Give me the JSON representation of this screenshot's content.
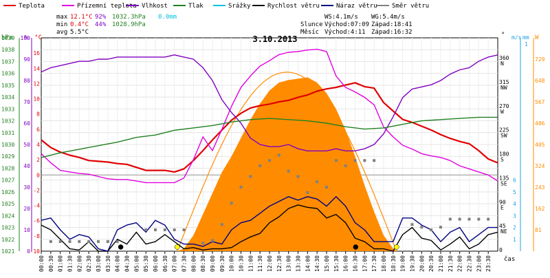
{
  "colors": {
    "teplota": "#e00000",
    "pocitova": "#e000e0",
    "vlhkost": "#8000c0",
    "tlak": "#208020",
    "srazky": "#00c0e0",
    "rychlost": "#000000",
    "naraz": "#000080",
    "smer": "#808080",
    "slunce": "#ff8c00",
    "axis_ms": "#20a0e0",
    "axis_w": "#ff8c00"
  },
  "legend": [
    {
      "label": "Teplota",
      "color_key": "teplota"
    },
    {
      "label": "Přízemní teplota",
      "color_key": "pocitova"
    },
    {
      "label": "Vlhkost",
      "color_key": "vlhkost"
    },
    {
      "label": "Tlak",
      "color_key": "tlak"
    },
    {
      "label": "Srážky",
      "color_key": "srazky"
    },
    {
      "label": "Rychlost větru",
      "color_key": "rychlost"
    },
    {
      "label": "Náraz větru",
      "color_key": "naraz"
    },
    {
      "label": "Směr větru",
      "color_key": "smer"
    }
  ],
  "stats": {
    "max": {
      "label": "max",
      "temp": "12.1°C",
      "hum": "92%",
      "press": "1032.3hPa",
      "rain": "0.0mm"
    },
    "min": {
      "label": "min",
      "temp": "0.4°C",
      "hum": "44%",
      "press": "1028.9hPa"
    },
    "avg": {
      "label": "avg",
      "temp": "5.5°C"
    }
  },
  "wind_info": {
    "ws": "WS:4.1m/s",
    "wg": "WG:5.4m/s"
  },
  "sun": {
    "label": "Slunce",
    "rise": "Východ:07:09",
    "set": "Západ:18:41"
  },
  "moon": {
    "label": "Měsíc",
    "rise": "Východ:4:11",
    "set": "Západ:16:32"
  },
  "chart_data": {
    "type": "line",
    "title": "3.10.2013",
    "xlabel": "čas",
    "x_ticks": [
      "00:00",
      "00:30",
      "01:00",
      "01:30",
      "02:00",
      "02:30",
      "03:00",
      "03:30",
      "04:00",
      "04:30",
      "05:00",
      "05:30",
      "06:00",
      "06:30",
      "07:00",
      "07:30",
      "08:00",
      "08:30",
      "09:00",
      "09:30",
      "10:00",
      "10:30",
      "11:00",
      "11:30",
      "12:00",
      "12:30",
      "13:00",
      "13:30",
      "14:00",
      "14:30",
      "15:00",
      "15:30",
      "16:00",
      "16:30",
      "17:00",
      "17:30",
      "18:00",
      "18:30",
      "19:00",
      "19:30",
      "20:00",
      "20:30",
      "21:00",
      "21:30",
      "22:00",
      "22:30",
      "23:00",
      "23:30"
    ],
    "axes": {
      "hpa": {
        "unit": "hPa",
        "range": [
          1021,
          1039
        ],
        "ticks": [
          "1039",
          "1038",
          "1037",
          "1036",
          "1035",
          "1034",
          "1033",
          "1032",
          "1031",
          "1030",
          "1029",
          "1028",
          "1027",
          "1026",
          "1025",
          "1024",
          "1023",
          "1022",
          "1021"
        ]
      },
      "percent": {
        "unit": "%",
        "range": [
          0,
          100
        ],
        "ticks": [
          "100",
          "90",
          "80",
          "70",
          "60",
          "50",
          "40",
          "30",
          "20",
          "10",
          "0"
        ]
      },
      "celsius": {
        "unit": "°C",
        "range": [
          -10,
          18
        ],
        "ticks": [
          "16",
          "14",
          "12",
          "10",
          "8",
          "6",
          "4",
          "2",
          "0",
          "-2",
          "-4",
          "-6",
          "-8",
          "-10"
        ]
      },
      "direction": {
        "unit": "°",
        "range": [
          0,
          360
        ],
        "ticks": [
          {
            "deg": "360",
            "dir": "N"
          },
          {
            "deg": "315",
            "dir": "NW"
          },
          {
            "deg": "270",
            "dir": "W"
          },
          {
            "deg": "225",
            "dir": "SW"
          },
          {
            "deg": "180",
            "dir": "S"
          },
          {
            "deg": "135",
            "dir": "SE"
          },
          {
            "deg": "90",
            "dir": "E"
          },
          {
            "deg": "45",
            "dir": "NE"
          },
          {
            "deg": "0",
            "dir": ""
          }
        ]
      },
      "ms": {
        "unit": "m/s",
        "range": [
          0,
          6
        ],
        "ticks": [
          "6",
          "5",
          "4",
          "3",
          "2",
          "1"
        ]
      },
      "mm": {
        "unit": "mm",
        "ticks": [
          "1"
        ]
      },
      "wm2": {
        "unit": "W",
        "range": [
          0,
          810
        ],
        "ticks": [
          "729",
          "648",
          "567",
          "486",
          "405",
          "324",
          "243",
          "162",
          "81"
        ]
      }
    },
    "series": [
      {
        "name": "Teplota",
        "unit": "°C",
        "color_key": "teplota",
        "x": [
          0,
          0.5,
          1,
          1.5,
          2,
          2.5,
          3,
          3.5,
          4,
          4.5,
          5,
          5.5,
          6,
          6.5,
          7,
          7.5,
          8,
          8.5,
          9,
          9.5,
          10,
          10.5,
          11,
          11.5,
          12,
          12.5,
          13,
          13.5,
          14,
          14.5,
          15,
          15.5,
          16,
          16.5,
          17,
          17.5,
          18,
          18.5,
          19,
          19.5,
          20,
          20.5,
          21,
          21.5,
          22,
          22.5,
          23,
          23.5,
          24
        ],
        "y": [
          4.6,
          3.6,
          3.0,
          2.6,
          2.3,
          1.9,
          1.8,
          1.7,
          1.5,
          1.4,
          1.0,
          0.6,
          0.6,
          0.6,
          0.4,
          0.8,
          1.9,
          3.2,
          4.6,
          5.9,
          7.2,
          8.1,
          8.8,
          9.1,
          9.3,
          9.6,
          9.8,
          10.2,
          10.5,
          11.0,
          11.3,
          11.5,
          11.8,
          12.1,
          11.6,
          11.4,
          9.5,
          8.4,
          7.3,
          6.9,
          6.4,
          5.9,
          5.3,
          4.8,
          4.4,
          4.1,
          3.2,
          2.1,
          1.6
        ]
      },
      {
        "name": "Přízemní teplota",
        "unit": "°C",
        "color_key": "pocitova",
        "x": [
          0,
          0.5,
          1,
          1.5,
          2,
          2.5,
          3,
          3.5,
          4,
          4.5,
          5,
          5.5,
          6,
          6.5,
          7,
          7.5,
          8,
          8.5,
          9,
          9.5,
          10,
          10.5,
          11,
          11.5,
          12,
          12.5,
          13,
          13.5,
          14,
          14.5,
          15,
          15.5,
          16,
          16.5,
          17,
          17.5,
          18,
          18.5,
          19,
          19.5,
          20,
          20.5,
          21,
          21.5,
          22,
          22.5,
          23,
          23.5,
          24
        ],
        "y": [
          2.8,
          1.6,
          0.6,
          0.4,
          0.2,
          0.1,
          -0.2,
          -0.5,
          -0.6,
          -0.6,
          -0.8,
          -1.0,
          -1.0,
          -1.0,
          -1.0,
          -0.4,
          2.0,
          5.0,
          3.2,
          6.0,
          9.0,
          11.5,
          13.0,
          14.3,
          15.0,
          15.8,
          16.1,
          16.2,
          16.4,
          16.5,
          16.2,
          13.0,
          11.5,
          10.9,
          10.2,
          9.2,
          6.3,
          5.0,
          3.9,
          3.4,
          2.8,
          2.5,
          2.3,
          1.9,
          1.2,
          0.8,
          0.4,
          0.0,
          -0.8
        ]
      },
      {
        "name": "Vlhkost",
        "unit": "%",
        "color_key": "vlhkost",
        "x": [
          0,
          0.5,
          1,
          1.5,
          2,
          2.5,
          3,
          3.5,
          4,
          4.5,
          5,
          5.5,
          6,
          6.5,
          7,
          7.5,
          8,
          8.5,
          9,
          9.5,
          10,
          10.5,
          11,
          11.5,
          12,
          12.5,
          13,
          13.5,
          14,
          14.5,
          15,
          15.5,
          16,
          16.5,
          17,
          17.5,
          18,
          18.5,
          19,
          19.5,
          20,
          20.5,
          21,
          21.5,
          22,
          22.5,
          23,
          23.5,
          24
        ],
        "y": [
          84,
          86,
          87,
          88,
          89,
          89,
          90,
          90,
          91,
          91,
          91,
          91,
          91,
          91,
          92,
          91,
          90,
          86,
          80,
          71,
          65,
          60,
          53,
          50,
          49,
          49,
          50,
          48,
          47,
          47,
          47,
          48,
          47,
          47,
          48,
          50,
          55,
          63,
          72,
          76,
          77,
          78,
          80,
          83,
          85,
          86,
          89,
          91,
          92
        ]
      },
      {
        "name": "Tlak",
        "unit": "hPa",
        "color_key": "tlak",
        "x": [
          0,
          1,
          2,
          3,
          4,
          5,
          6,
          7,
          8,
          9,
          10,
          11,
          12,
          13,
          14,
          15,
          16,
          17,
          18,
          19,
          20,
          21,
          22,
          23,
          24
        ],
        "y": [
          1028.9,
          1029.3,
          1029.6,
          1029.9,
          1030.2,
          1030.6,
          1030.8,
          1031.2,
          1031.4,
          1031.6,
          1031.9,
          1032.1,
          1032.2,
          1032.1,
          1032.0,
          1031.8,
          1031.5,
          1031.3,
          1031.4,
          1031.7,
          1032.0,
          1032.1,
          1032.2,
          1032.3,
          1032.3
        ]
      },
      {
        "name": "Rychlost větru",
        "unit": "m/s",
        "color_key": "rychlost",
        "x": [
          0,
          0.5,
          1,
          1.5,
          2,
          2.5,
          3,
          3.5,
          4,
          4.5,
          5,
          5.5,
          6,
          6.5,
          7,
          7.5,
          8,
          8.5,
          9,
          9.5,
          10,
          10.5,
          11,
          11.5,
          12,
          12.5,
          13,
          13.5,
          14,
          14.5,
          15,
          15.5,
          16,
          16.5,
          17,
          17.5,
          18,
          18.5,
          19,
          19.5,
          20,
          20.5,
          21,
          21.5,
          22,
          22.5,
          23,
          23.5,
          24
        ],
        "y": [
          2.2,
          1.8,
          1.0,
          0.2,
          0.1,
          0.8,
          0.0,
          0.0,
          1.0,
          0.6,
          1.6,
          0.6,
          0.8,
          1.4,
          0.8,
          0.2,
          0.3,
          0.1,
          0.2,
          0.2,
          0.3,
          0.8,
          1.2,
          1.5,
          2.4,
          2.9,
          3.6,
          3.9,
          3.7,
          3.6,
          2.8,
          3.1,
          2.4,
          1.1,
          0.8,
          0.2,
          0.2,
          0.0,
          1.4,
          2.0,
          1.1,
          0.9,
          0.1,
          0.6,
          1.2,
          0.2,
          0.6,
          1.4,
          1.6
        ]
      },
      {
        "name": "Náraz větru",
        "unit": "m/s",
        "color_key": "naraz",
        "x": [
          0,
          0.5,
          1,
          1.5,
          2,
          2.5,
          3,
          3.5,
          4,
          4.5,
          5,
          5.5,
          6,
          6.5,
          7,
          7.5,
          8,
          8.5,
          9,
          9.5,
          10,
          10.5,
          11,
          11.5,
          12,
          12.5,
          13,
          13.5,
          14,
          14.5,
          15,
          15.5,
          16,
          16.5,
          17,
          17.5,
          18,
          18.5,
          19,
          19.5,
          20,
          20.5,
          21,
          21.5,
          22,
          22.5,
          23,
          23.5,
          24
        ],
        "y": [
          2.6,
          2.8,
          1.8,
          1.0,
          1.4,
          1.2,
          0.2,
          0.0,
          1.8,
          2.2,
          2.4,
          1.6,
          2.6,
          2.2,
          1.0,
          0.6,
          0.6,
          0.4,
          0.8,
          0.6,
          1.8,
          2.4,
          2.6,
          3.2,
          3.8,
          4.2,
          4.6,
          4.3,
          4.6,
          4.4,
          3.8,
          4.6,
          3.8,
          2.4,
          1.8,
          0.8,
          0.8,
          0.8,
          2.8,
          2.8,
          2.2,
          1.8,
          0.8,
          1.6,
          2.0,
          0.8,
          1.4,
          2.0,
          2.0
        ]
      },
      {
        "name": "Směr větru",
        "unit": "°",
        "color_key": "smer",
        "style": "points",
        "x": [
          0.5,
          1,
          1.5,
          2,
          2.5,
          3,
          3.5,
          4,
          5.5,
          6,
          6.5,
          7,
          7.5,
          8.5,
          9,
          9.5,
          10,
          10.5,
          11,
          11.5,
          12,
          12.5,
          13,
          13.5,
          14,
          14.5,
          15,
          15.5,
          16,
          16.5,
          17,
          17.5,
          19.5,
          20,
          20.5,
          21,
          21.5,
          22,
          22.5,
          23,
          23.5
        ],
        "y": [
          18,
          18,
          18,
          18,
          18,
          18,
          18,
          18,
          40,
          40,
          40,
          40,
          40,
          15,
          20,
          50,
          90,
          120,
          140,
          160,
          170,
          180,
          150,
          140,
          110,
          130,
          120,
          170,
          160,
          170,
          170,
          170,
          50,
          45,
          40,
          45,
          60,
          60,
          60,
          60,
          60
        ]
      },
      {
        "name": "Slunce",
        "unit": "W",
        "color_key": "slunce",
        "style": "area",
        "x": [
          7.15,
          7.5,
          8,
          8.5,
          9,
          9.5,
          10,
          10.5,
          11,
          11.5,
          12,
          12.5,
          13,
          13.5,
          14,
          14.5,
          15,
          15.5,
          16,
          16.5,
          17,
          17.5,
          18,
          18.5,
          18.68
        ],
        "y": [
          0,
          10,
          60,
          140,
          220,
          300,
          360,
          430,
          500,
          560,
          610,
          640,
          650,
          655,
          660,
          640,
          600,
          540,
          460,
          360,
          250,
          150,
          60,
          10,
          0
        ]
      }
    ],
    "markers": [
      {
        "label": "moon rise",
        "x": 4.18,
        "color": "#000000"
      },
      {
        "label": "sun rise",
        "x": 7.15,
        "color": "#ffff00"
      },
      {
        "label": "moon set",
        "x": 16.53,
        "color": "#000000"
      },
      {
        "label": "sun set",
        "x": 18.68,
        "color": "#ffff00"
      }
    ]
  }
}
